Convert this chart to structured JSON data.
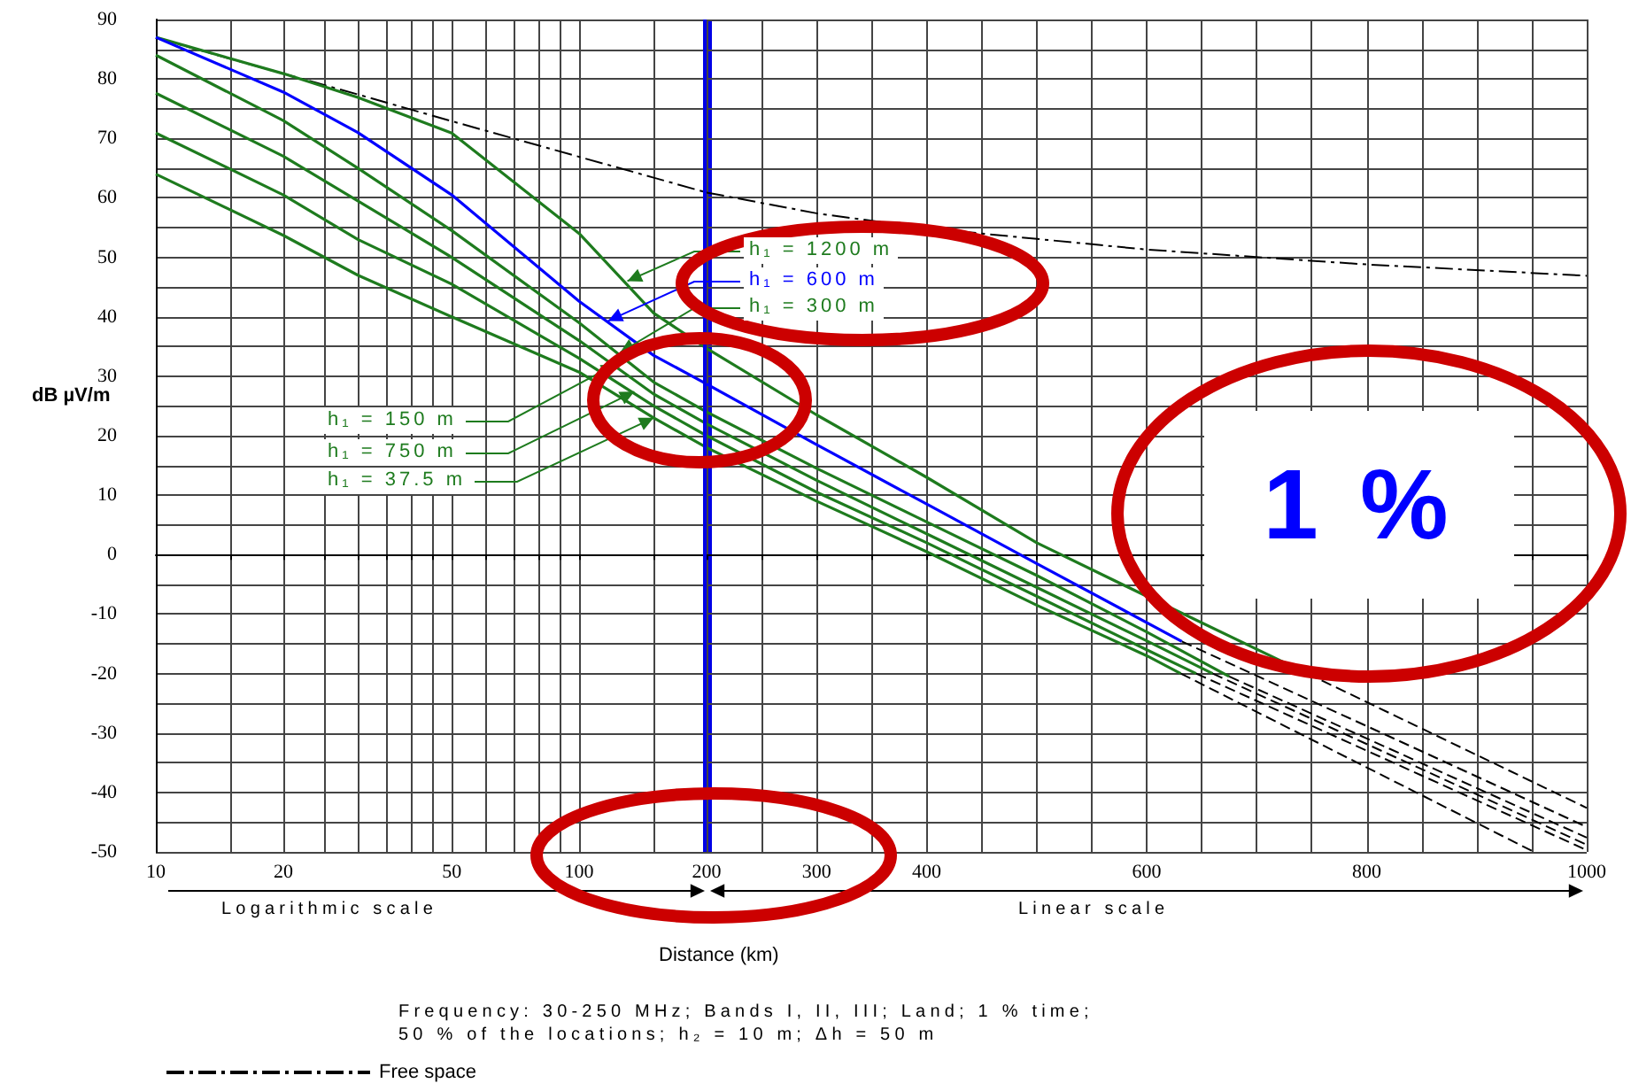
{
  "chart_data": [
    {
      "type": "line",
      "xlabel": "Distance (km)",
      "ylabel": "dB µV/m",
      "log": "x",
      "grid": true,
      "marker": "none",
      "legend": "bottom left",
      "xlim": [
        10,
        200
      ],
      "xticks": [
        10,
        {
          "value": 15,
          "label": null
        },
        20,
        {
          "value": 25,
          "label": null
        },
        {
          "value": 30,
          "label": null
        },
        {
          "value": 35,
          "label": null
        },
        {
          "value": 40,
          "label": null
        },
        {
          "value": 45,
          "label": null
        },
        50,
        {
          "value": 60,
          "label": null
        },
        {
          "value": 70,
          "label": null
        },
        {
          "value": 80,
          "label": null
        },
        {
          "value": 90,
          "label": null
        },
        100,
        {
          "value": 150,
          "label": null
        },
        200
      ],
      "ylim": [
        -50,
        90
      ],
      "yticks": [
        -50,
        {
          "value": -45,
          "label": null
        },
        -40,
        {
          "value": -35,
          "label": null
        },
        -30,
        {
          "value": -25,
          "label": null
        },
        -20,
        {
          "value": -15,
          "label": null
        },
        -10,
        {
          "value": -5,
          "label": null
        },
        0,
        {
          "value": 5,
          "label": null
        },
        10,
        {
          "value": 15,
          "label": null
        },
        20,
        {
          "value": 25,
          "label": null
        },
        30,
        {
          "value": 35,
          "label": null
        },
        40,
        {
          "value": 45,
          "label": null
        },
        50,
        {
          "value": 55,
          "label": null
        },
        60,
        {
          "value": 65,
          "label": null
        },
        70,
        {
          "value": 75,
          "label": null
        },
        80,
        {
          "value": 85,
          "label": null
        },
        90
      ],
      "x": [
        10,
        20,
        30,
        50,
        100,
        150,
        200
      ],
      "series": [
        {
          "name": "Free space",
          "color": "#000000",
          "line_style": "dashdot",
          "values": [
            86.9,
            80.9,
            77.4,
            72.9,
            66.9,
            63.4,
            60.9
          ]
        },
        {
          "color": "#1e7b1e",
          "line_style": "solid",
          "values": [
            87,
            80.9,
            76.9,
            70.9,
            54,
            40.6,
            34.7
          ]
        },
        {
          "color": "#0000ff",
          "line_style": "solid",
          "values": [
            87,
            77.8,
            71,
            60.5,
            42.6,
            33.5,
            28.7
          ]
        },
        {
          "color": "#1e7b1e",
          "line_style": "solid",
          "values": [
            84,
            73,
            65,
            54.5,
            39,
            29,
            24
          ]
        },
        {
          "color": "#1e7b1e",
          "line_style": "solid",
          "values": [
            77.6,
            67,
            59.5,
            50,
            36,
            27,
            22
          ]
        },
        {
          "color": "#1e7b1e",
          "line_style": "solid",
          "values": [
            70.9,
            60.5,
            53,
            45.5,
            33,
            25,
            20
          ]
        },
        {
          "color": "#1e7b1e",
          "line_style": "solid",
          "values": [
            64,
            53.7,
            47,
            40,
            30.7,
            23,
            18
          ]
        }
      ],
      "ref_lines": [
        {
          "axis": "x",
          "value": 200,
          "color": "#0000e6"
        }
      ],
      "annotations": [
        "Logarithmic scale",
        "Frequency: 30-250 MHz; Bands I, II, III; Land; 1 % time;",
        "50 % of the locations; h₂ = 10 m; Δh = 50 m",
        {
          "text": "h₁ = 1200 m",
          "x": 130,
          "y": 46
        },
        {
          "text": "h₁ = 600 m",
          "x": 117,
          "y": 39.3
        },
        {
          "text": "h₁ = 300 m",
          "x": 125,
          "y": 34
        },
        {
          "text": "h₁ = 150 m",
          "x": 122,
          "y": 32
        },
        {
          "text": "h₁ = 750 m",
          "x": 135,
          "y": 27.4
        },
        {
          "text": "h₁ = 37.5 m",
          "x": 150,
          "y": 23
        }
      ]
    },
    {
      "type": "line",
      "grid": true,
      "marker": "none",
      "tick_labels": "x",
      "xlim": [
        200,
        1000
      ],
      "xticks": [
        {
          "value": 200,
          "label": null
        },
        {
          "value": 250,
          "label": null
        },
        300,
        {
          "value": 350,
          "label": null
        },
        400,
        {
          "value": 450,
          "label": null
        },
        {
          "value": 500,
          "label": null
        },
        {
          "value": 550,
          "label": null
        },
        600,
        {
          "value": 650,
          "label": null
        },
        {
          "value": 700,
          "label": null
        },
        {
          "value": 750,
          "label": null
        },
        800,
        {
          "value": 850,
          "label": null
        },
        {
          "value": 900,
          "label": null
        },
        {
          "value": 950,
          "label": null
        },
        1000
      ],
      "ylim": [
        -50,
        90
      ],
      "yticks": [
        -50,
        -45,
        -40,
        -35,
        -30,
        -25,
        -20,
        -15,
        -10,
        -5,
        0,
        5,
        10,
        15,
        20,
        25,
        30,
        35,
        40,
        45,
        50,
        55,
        60,
        65,
        70,
        75,
        80,
        85,
        90
      ],
      "series": [
        {
          "color": "#000000",
          "line_style": "dashdot",
          "x": [
            200,
            300,
            400,
            600,
            800,
            1000
          ],
          "values": [
            60.9,
            57.4,
            54.9,
            51.3,
            48.8,
            46.9
          ]
        },
        {
          "color": "#1e7b1e",
          "line_style": "solid",
          "x": [
            200,
            300,
            400,
            500,
            600,
            746
          ],
          "values": [
            34.7,
            23.5,
            13,
            2,
            -7,
            -20
          ]
        },
        {
          "color": "#0000ff",
          "line_style": "solid",
          "x": [
            200,
            300,
            400,
            500,
            632
          ],
          "values": [
            28.7,
            18.5,
            8.5,
            -1.5,
            -14.6
          ]
        },
        {
          "color": "#1e7b1e",
          "line_style": "solid",
          "x": [
            200,
            300,
            400,
            500,
            600,
            675
          ],
          "values": [
            24,
            14.5,
            5.5,
            -3.5,
            -13,
            -20.5
          ]
        },
        {
          "color": "#1e7b1e",
          "line_style": "solid",
          "x": [
            200,
            300,
            400,
            500,
            600,
            660
          ],
          "values": [
            22,
            12.5,
            3.5,
            -5.5,
            -14.5,
            -20
          ]
        },
        {
          "color": "#1e7b1e",
          "line_style": "solid",
          "x": [
            200,
            300,
            400,
            500,
            600,
            645
          ],
          "values": [
            20,
            10.5,
            2,
            -7,
            -16,
            -20
          ]
        },
        {
          "color": "#1e7b1e",
          "line_style": "solid",
          "x": [
            200,
            300,
            400,
            500,
            600,
            631
          ],
          "values": [
            18,
            9,
            0.5,
            -8.5,
            -17,
            -20
          ]
        },
        {
          "color": "#000000",
          "line_style": "dashed",
          "x": [
            746,
            1000
          ],
          "values": [
            -20,
            -42.6
          ]
        },
        {
          "color": "#000000",
          "line_style": "dashed",
          "x": [
            632,
            1000
          ],
          "values": [
            -14.6,
            -45.8
          ]
        },
        {
          "color": "#000000",
          "line_style": "dashed",
          "x": [
            675,
            1000
          ],
          "values": [
            -20.5,
            -47.6
          ]
        },
        {
          "color": "#000000",
          "line_style": "dashed",
          "x": [
            660,
            1000
          ],
          "values": [
            -20,
            -48.8
          ]
        },
        {
          "color": "#000000",
          "line_style": "dashed",
          "x": [
            645,
            1000
          ],
          "values": [
            -20,
            -49.7
          ]
        },
        {
          "color": "#000000",
          "line_style": "dashed",
          "x": [
            631,
            952
          ],
          "values": [
            -20,
            -50
          ]
        }
      ],
      "annotations": [
        "Linear scale",
        "1 %"
      ]
    }
  ]
}
